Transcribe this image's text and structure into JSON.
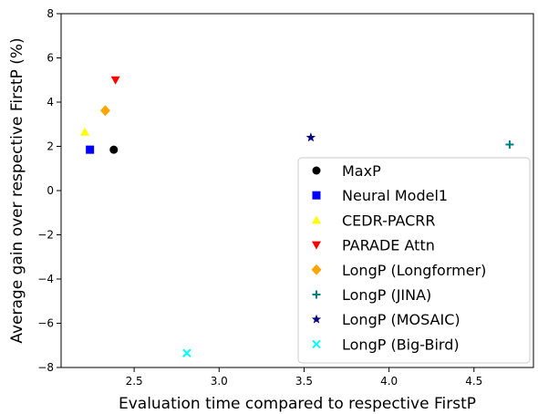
{
  "chart_data": {
    "type": "scatter",
    "title": "",
    "xlabel": "Evaluation time compared to respective FirstP",
    "ylabel": "Average gain over respective FirstP (%)",
    "xlim": [
      2.07,
      4.85
    ],
    "ylim": [
      -8,
      8
    ],
    "xticks": [
      2.5,
      3.0,
      3.5,
      4.0,
      4.5
    ],
    "xtick_labels": [
      "2.5",
      "3.0",
      "3.5",
      "4.0",
      "4.5"
    ],
    "yticks": [
      -8,
      -6,
      -4,
      -2,
      0,
      2,
      4,
      6,
      8
    ],
    "ytick_labels": [
      "−8",
      "−6",
      "−4",
      "−2",
      "0",
      "2",
      "4",
      "6",
      "8"
    ],
    "grid": false,
    "legend_position": "lower-right",
    "series": [
      {
        "name": "MaxP",
        "marker": "circle",
        "color": "#000000",
        "x": 2.38,
        "y": 1.85
      },
      {
        "name": "Neural Model1",
        "marker": "square",
        "color": "#0000ff",
        "x": 2.24,
        "y": 1.85
      },
      {
        "name": "CEDR-PACRR",
        "marker": "triangle-up",
        "color": "#ffff00",
        "x": 2.21,
        "y": 2.65
      },
      {
        "name": "PARADE Attn",
        "marker": "triangle-down",
        "color": "#ff0000",
        "x": 2.39,
        "y": 5.0
      },
      {
        "name": "LongP (Longformer)",
        "marker": "diamond",
        "color": "#ffa500",
        "x": 2.33,
        "y": 3.62
      },
      {
        "name": "LongP (JINA)",
        "marker": "plus",
        "color": "#008080",
        "x": 4.71,
        "y": 2.08
      },
      {
        "name": "LongP (MOSAIC)",
        "marker": "star",
        "color": "#000080",
        "x": 3.54,
        "y": 2.4
      },
      {
        "name": "LongP (Big-Bird)",
        "marker": "x",
        "color": "#00ffff",
        "x": 2.81,
        "y": -7.35
      }
    ]
  }
}
